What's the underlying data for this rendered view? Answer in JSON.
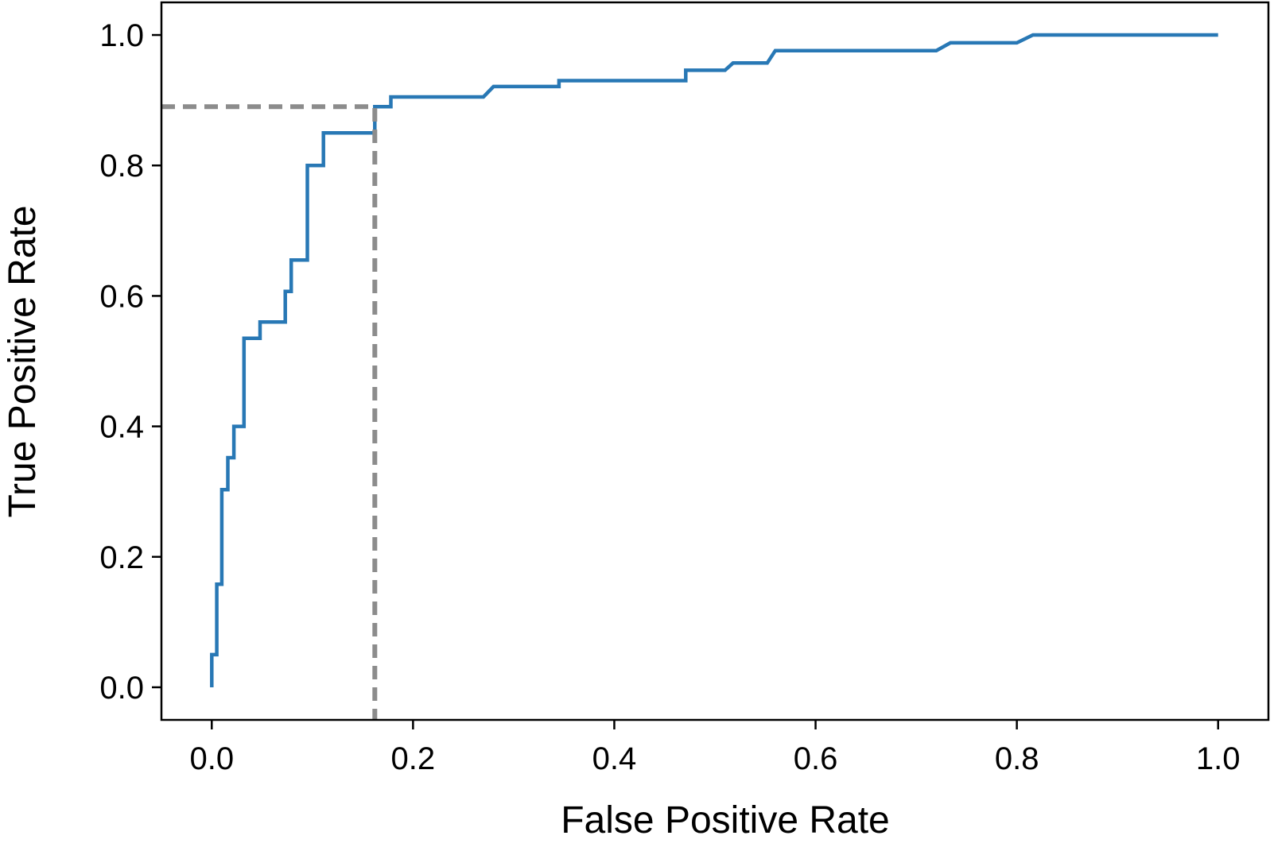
{
  "chart_data": {
    "type": "line",
    "title": "",
    "xlabel": "False Positive Rate",
    "ylabel": "True Positive Rate",
    "xlim": [
      -0.05,
      1.05
    ],
    "ylim": [
      -0.05,
      1.05
    ],
    "x_ticks": [
      0.0,
      0.2,
      0.4,
      0.6,
      0.8,
      1.0
    ],
    "x_tick_labels": [
      "0.0",
      "0.2",
      "0.4",
      "0.6",
      "0.8",
      "1.0"
    ],
    "y_ticks": [
      0.0,
      0.2,
      0.4,
      0.6,
      0.8,
      1.0
    ],
    "y_tick_labels": [
      "0.0",
      "0.2",
      "0.4",
      "0.6",
      "0.8",
      "1.0"
    ],
    "grid": false,
    "legend": "none",
    "series": [
      {
        "color": "#2878b5",
        "style": "solid",
        "x": [
          0.0,
          0.0,
          0.005,
          0.005,
          0.01,
          0.01,
          0.016,
          0.016,
          0.022,
          0.022,
          0.032,
          0.032,
          0.048,
          0.048,
          0.073,
          0.073,
          0.079,
          0.079,
          0.095,
          0.095,
          0.111,
          0.111,
          0.162,
          0.162,
          0.178,
          0.178,
          0.27,
          0.28,
          0.345,
          0.345,
          0.471,
          0.471,
          0.51,
          0.518,
          0.552,
          0.56,
          0.72,
          0.734,
          0.8,
          0.816,
          1.0
        ],
        "y": [
          0.0,
          0.05,
          0.05,
          0.158,
          0.158,
          0.303,
          0.303,
          0.352,
          0.352,
          0.4,
          0.4,
          0.535,
          0.535,
          0.56,
          0.56,
          0.607,
          0.607,
          0.655,
          0.655,
          0.8,
          0.8,
          0.85,
          0.85,
          0.89,
          0.89,
          0.905,
          0.905,
          0.921,
          0.921,
          0.93,
          0.93,
          0.946,
          0.946,
          0.957,
          0.957,
          0.976,
          0.976,
          0.988,
          0.988,
          1.0,
          1.0
        ]
      },
      {
        "color": "#8c8c8c",
        "style": "dashed",
        "x": [
          -0.05,
          0.162,
          0.162
        ],
        "y": [
          0.89,
          0.89,
          -0.05
        ]
      }
    ]
  }
}
